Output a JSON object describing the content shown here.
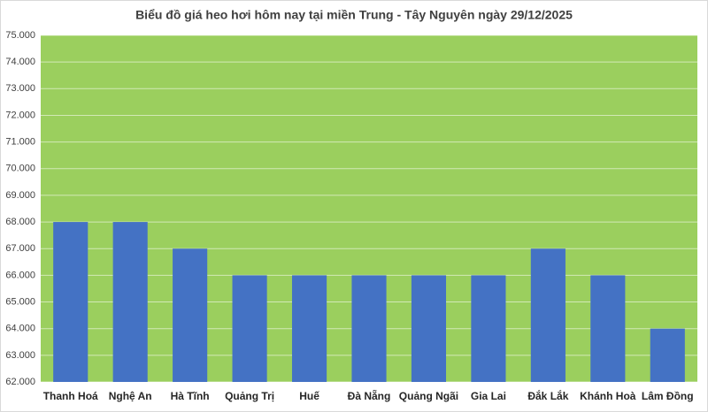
{
  "chart_data": {
    "type": "bar",
    "title": "Biểu đồ giá heo hơi hôm nay tại miền Trung - Tây Nguyên ngày 29/12/2025",
    "categories": [
      "Thanh Hoá",
      "Nghệ An",
      "Hà Tĩnh",
      "Quảng Trị",
      "Huế",
      "Đà Nẵng",
      "Quảng Ngãi",
      "Gia Lai",
      "Đắk Lắk",
      "Khánh Hoà",
      "Lâm Đồng"
    ],
    "values": [
      68000,
      68000,
      67000,
      66000,
      66000,
      66000,
      66000,
      66000,
      67000,
      66000,
      64000
    ],
    "color": "#4472c4",
    "ylim": [
      62000,
      75000
    ],
    "yticks": [
      {
        "value": 62000,
        "label": "62.000"
      },
      {
        "value": 63000,
        "label": "63.000"
      },
      {
        "value": 64000,
        "label": "64.000"
      },
      {
        "value": 65000,
        "label": "65.000"
      },
      {
        "value": 66000,
        "label": "66.000"
      },
      {
        "value": 67000,
        "label": "67.000"
      },
      {
        "value": 68000,
        "label": "68.000"
      },
      {
        "value": 69000,
        "label": "69.000"
      },
      {
        "value": 70000,
        "label": "70.000"
      },
      {
        "value": 71000,
        "label": "71.000"
      },
      {
        "value": 72000,
        "label": "72.000"
      },
      {
        "value": 73000,
        "label": "73.000"
      },
      {
        "value": 74000,
        "label": "74.000"
      },
      {
        "value": 75000,
        "label": "75.000"
      }
    ],
    "grid": true
  }
}
